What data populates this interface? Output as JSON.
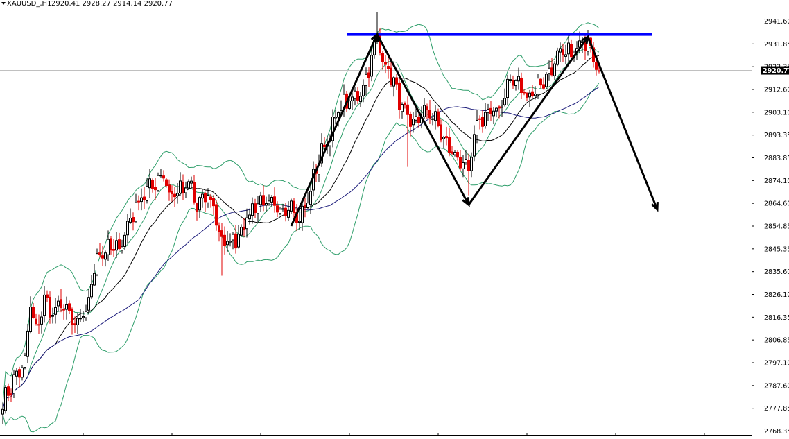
{
  "header": {
    "symbol": "XAUUSD_,H1",
    "ohlc": "2920.41 2928.27 2914.14 2920.77"
  },
  "colors": {
    "bull": "#000000",
    "bear": "#e00000",
    "bollinger": "#2e9e6a",
    "ma_fast": "#000000",
    "ma_slow": "#1a1a7a",
    "resistance": "#0000ff",
    "pattern": "#000000",
    "current_price": "#000000",
    "current_line": "#c0c0c0"
  },
  "chart_data": {
    "type": "candlestick",
    "symbol": "XAUUSD_",
    "timeframe": "H1",
    "ylim": [
      2768.35,
      2946.0
    ],
    "yticks": [
      "2941.60",
      "2931.85",
      "2922.35",
      "2912.60",
      "2903.10",
      "2893.35",
      "2883.85",
      "2874.10",
      "2864.60",
      "2854.85",
      "2845.35",
      "2835.60",
      "2826.10",
      "2816.35",
      "2806.85",
      "2797.10",
      "2787.60",
      "2777.85",
      "2768.35"
    ],
    "current_price": "2920.77",
    "bar_count": 216,
    "anchors": [
      [
        0,
        2780
      ],
      [
        4,
        2790
      ],
      [
        8,
        2797
      ],
      [
        10,
        2822
      ],
      [
        12,
        2810
      ],
      [
        15,
        2824
      ],
      [
        18,
        2818
      ],
      [
        22,
        2822
      ],
      [
        26,
        2812
      ],
      [
        30,
        2818
      ],
      [
        34,
        2843
      ],
      [
        38,
        2845
      ],
      [
        42,
        2846
      ],
      [
        46,
        2858
      ],
      [
        50,
        2868
      ],
      [
        54,
        2872
      ],
      [
        58,
        2878
      ],
      [
        60,
        2868
      ],
      [
        64,
        2870
      ],
      [
        68,
        2872
      ],
      [
        70,
        2862
      ],
      [
        73,
        2868
      ],
      [
        76,
        2864
      ],
      [
        78,
        2852
      ],
      [
        80,
        2847
      ],
      [
        84,
        2850
      ],
      [
        88,
        2858
      ],
      [
        92,
        2866
      ],
      [
        96,
        2864
      ],
      [
        100,
        2860
      ],
      [
        104,
        2866
      ],
      [
        106,
        2858
      ],
      [
        108,
        2860
      ],
      [
        110,
        2866
      ],
      [
        114,
        2884
      ],
      [
        118,
        2894
      ],
      [
        122,
        2906
      ],
      [
        126,
        2908
      ],
      [
        130,
        2914
      ],
      [
        133,
        2926
      ],
      [
        135,
        2935
      ],
      [
        137,
        2926
      ],
      [
        140,
        2918
      ],
      [
        142,
        2912
      ],
      [
        144,
        2905
      ],
      [
        147,
        2897
      ],
      [
        150,
        2901
      ],
      [
        154,
        2904
      ],
      [
        157,
        2897
      ],
      [
        160,
        2889
      ],
      [
        164,
        2884
      ],
      [
        168,
        2877
      ],
      [
        171,
        2899
      ],
      [
        174,
        2902
      ],
      [
        178,
        2903
      ],
      [
        180,
        2908
      ],
      [
        183,
        2917
      ],
      [
        186,
        2915
      ],
      [
        189,
        2910
      ],
      [
        192,
        2913
      ],
      [
        196,
        2918
      ],
      [
        200,
        2926
      ],
      [
        204,
        2928
      ],
      [
        208,
        2930
      ],
      [
        211,
        2935
      ],
      [
        213,
        2928
      ],
      [
        215,
        2921
      ]
    ],
    "resistance_level": 2936,
    "pattern_points": [
      [
        104,
        2855
      ],
      [
        135,
        2936
      ],
      [
        168,
        2864
      ],
      [
        211,
        2935
      ],
      [
        236,
        2862
      ]
    ],
    "indicators": [
      "Bollinger Bands (20, 2)",
      "Moving Average (20)",
      "Moving Average (50)"
    ]
  }
}
